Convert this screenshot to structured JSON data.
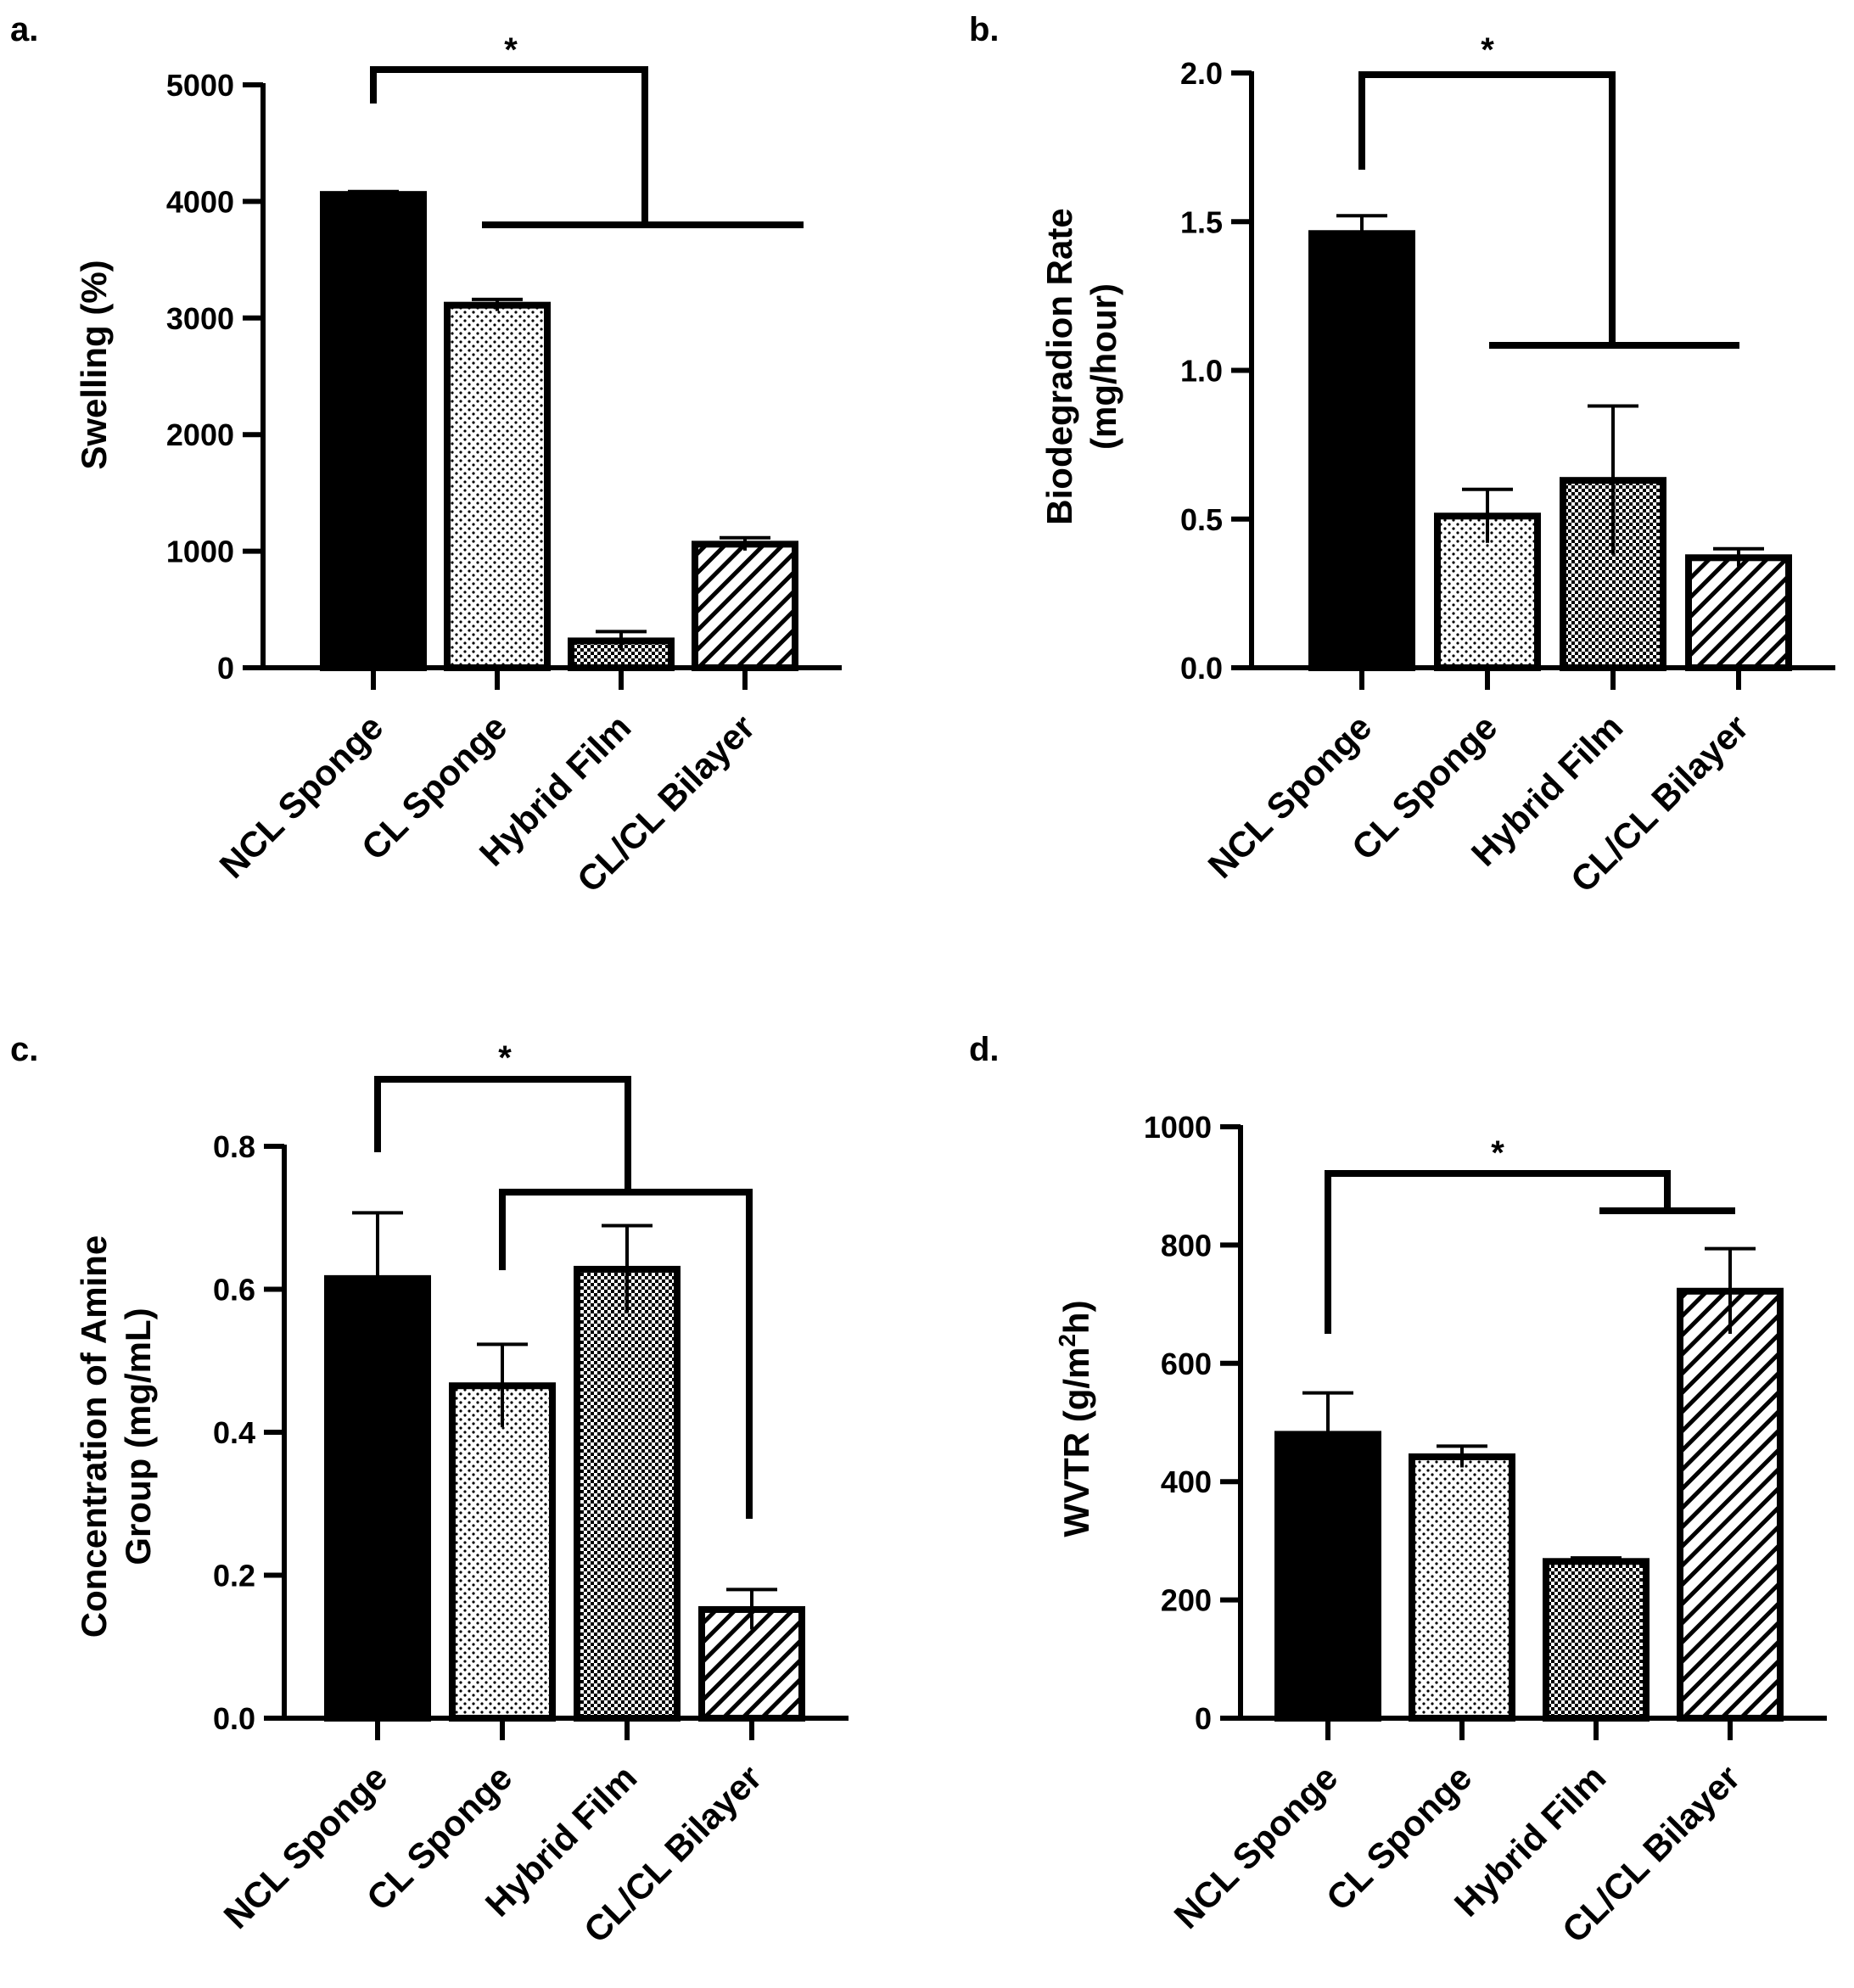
{
  "figure_title": "",
  "chart_data": [
    {
      "panel": "a.",
      "type": "bar",
      "categories": [
        "NCL Sponge",
        "CL Sponge",
        "Hybrid Film",
        "CL/CL Bilayer"
      ],
      "values": [
        4060,
        3110,
        230,
        1060
      ],
      "errors": [
        25,
        50,
        80,
        55
      ],
      "patterns": [
        "solid",
        "dots",
        "checker",
        "hatch"
      ],
      "ylabel_lines": [
        "Swelling (%)"
      ],
      "ylim": [
        0,
        5000
      ],
      "yticks": [
        0,
        1000,
        2000,
        3000,
        4000,
        5000
      ],
      "ytick_labels": [
        "0",
        "1000",
        "2000",
        "3000",
        "4000",
        "5000"
      ],
      "significance": {
        "symbol": "*",
        "left_group": [
          "NCL Sponge"
        ],
        "right_group": [
          "CL Sponge",
          "Hybrid Film",
          "CL/CL Bilayer"
        ]
      }
    },
    {
      "panel": "b.",
      "type": "bar",
      "categories": [
        "NCL Sponge",
        "CL Sponge",
        "Hybrid Film",
        "CL/CL Bilayer"
      ],
      "values": [
        1.46,
        0.51,
        0.63,
        0.37
      ],
      "errors": [
        0.06,
        0.09,
        0.25,
        0.03
      ],
      "patterns": [
        "solid",
        "dots",
        "checker",
        "hatch"
      ],
      "ylabel_lines": [
        "Biodegradion Rate",
        "(mg/hour)"
      ],
      "ylim": [
        0,
        2.0
      ],
      "yticks": [
        0,
        0.5,
        1.0,
        1.5,
        2.0
      ],
      "ytick_labels": [
        "0.0",
        "0.5",
        "1.0",
        "1.5",
        "2.0"
      ],
      "significance": {
        "symbol": "*",
        "left_group": [
          "NCL Sponge"
        ],
        "right_group": [
          "CL Sponge",
          "Hybrid Film",
          "CL/CL Bilayer"
        ]
      }
    },
    {
      "panel": "c.",
      "type": "bar",
      "categories": [
        "NCL Sponge",
        "CL Sponge",
        "Hybrid Film",
        "CL/CL Bilayer"
      ],
      "values": [
        0.615,
        0.465,
        0.628,
        0.152
      ],
      "errors": [
        0.092,
        0.058,
        0.061,
        0.028
      ],
      "patterns": [
        "solid",
        "dots",
        "checker",
        "hatch"
      ],
      "ylabel_lines": [
        "Concentration of Amine",
        "Group (mg/mL)"
      ],
      "ylim": [
        0,
        0.8
      ],
      "yticks": [
        0,
        0.2,
        0.4,
        0.6,
        0.8
      ],
      "ytick_labels": [
        "0.0",
        "0.2",
        "0.4",
        "0.6",
        "0.8"
      ],
      "significance": {
        "symbol": "*",
        "left_group": [
          "NCL Sponge"
        ],
        "right_group": [
          "CL Sponge",
          "CL/CL Bilayer"
        ]
      }
    },
    {
      "panel": "d.",
      "type": "bar",
      "categories": [
        "NCL Sponge",
        "CL Sponge",
        "Hybrid Film",
        "CL/CL Bilayer"
      ],
      "values": [
        480,
        442,
        265,
        722
      ],
      "errors": [
        70,
        18,
        6,
        72
      ],
      "patterns": [
        "solid",
        "dots",
        "checker",
        "hatch"
      ],
      "ylabel_lines": [
        "WVTR (g/m",
        "2",
        "h)"
      ],
      "ylim": [
        0,
        1000
      ],
      "yticks": [
        0,
        200,
        400,
        600,
        800,
        1000
      ],
      "ytick_labels": [
        "0",
        "200",
        "400",
        "600",
        "800",
        "1000"
      ],
      "significance": {
        "symbol": "*",
        "left_group": [
          "NCL Sponge"
        ],
        "right_group": [
          "Hybrid Film",
          "CL/CL Bilayer"
        ]
      }
    }
  ]
}
